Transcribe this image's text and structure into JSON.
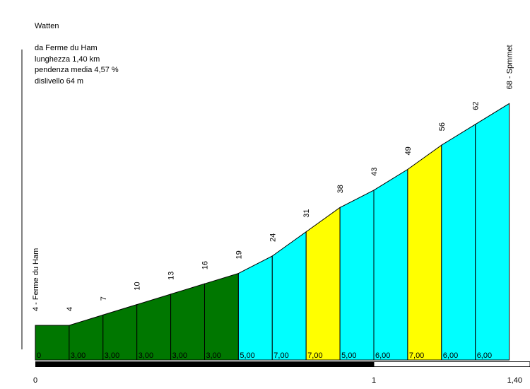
{
  "info": {
    "name": "Watten",
    "from": "da Ferme du Ham",
    "length": "lunghezza 1,40 km",
    "gradient": "pendenza media 4,57 %",
    "climb": "dislivello 64 m"
  },
  "chart_data": {
    "type": "area",
    "title": "Watten",
    "x": [
      0,
      0.1,
      0.2,
      0.3,
      0.4,
      0.5,
      0.6,
      0.7,
      0.8,
      0.9,
      1.0,
      1.1,
      1.2,
      1.3,
      1.4
    ],
    "elevation": [
      4,
      4,
      7,
      10,
      13,
      16,
      19,
      24,
      31,
      38,
      43,
      49,
      56,
      62,
      68
    ],
    "elevation_labels": [
      "4",
      "7",
      "10",
      "13",
      "16",
      "19",
      "24",
      "31",
      "38",
      "43",
      "49",
      "56",
      "62"
    ],
    "start_label": "4 - Ferme du Ham",
    "end_label": "68 - Spmmet",
    "segment_gradients": [
      "0",
      "3,00",
      "3,00",
      "3,00",
      "3,00",
      "3,00",
      "5,00",
      "7,00",
      "7,00",
      "5,00",
      "6,00",
      "7,00",
      "6,00",
      "6,00"
    ],
    "segment_colors": [
      "#007700",
      "#007700",
      "#007700",
      "#007700",
      "#007700",
      "#007700",
      "#00ffff",
      "#00ffff",
      "#ffff00",
      "#00ffff",
      "#00ffff",
      "#ffff00",
      "#00ffff",
      "#00ffff"
    ],
    "x_tick_labels": [
      "0",
      "1",
      "1,40"
    ],
    "x_tick_values": [
      0,
      1,
      1.4
    ],
    "unit_bar_color": "#000000"
  }
}
